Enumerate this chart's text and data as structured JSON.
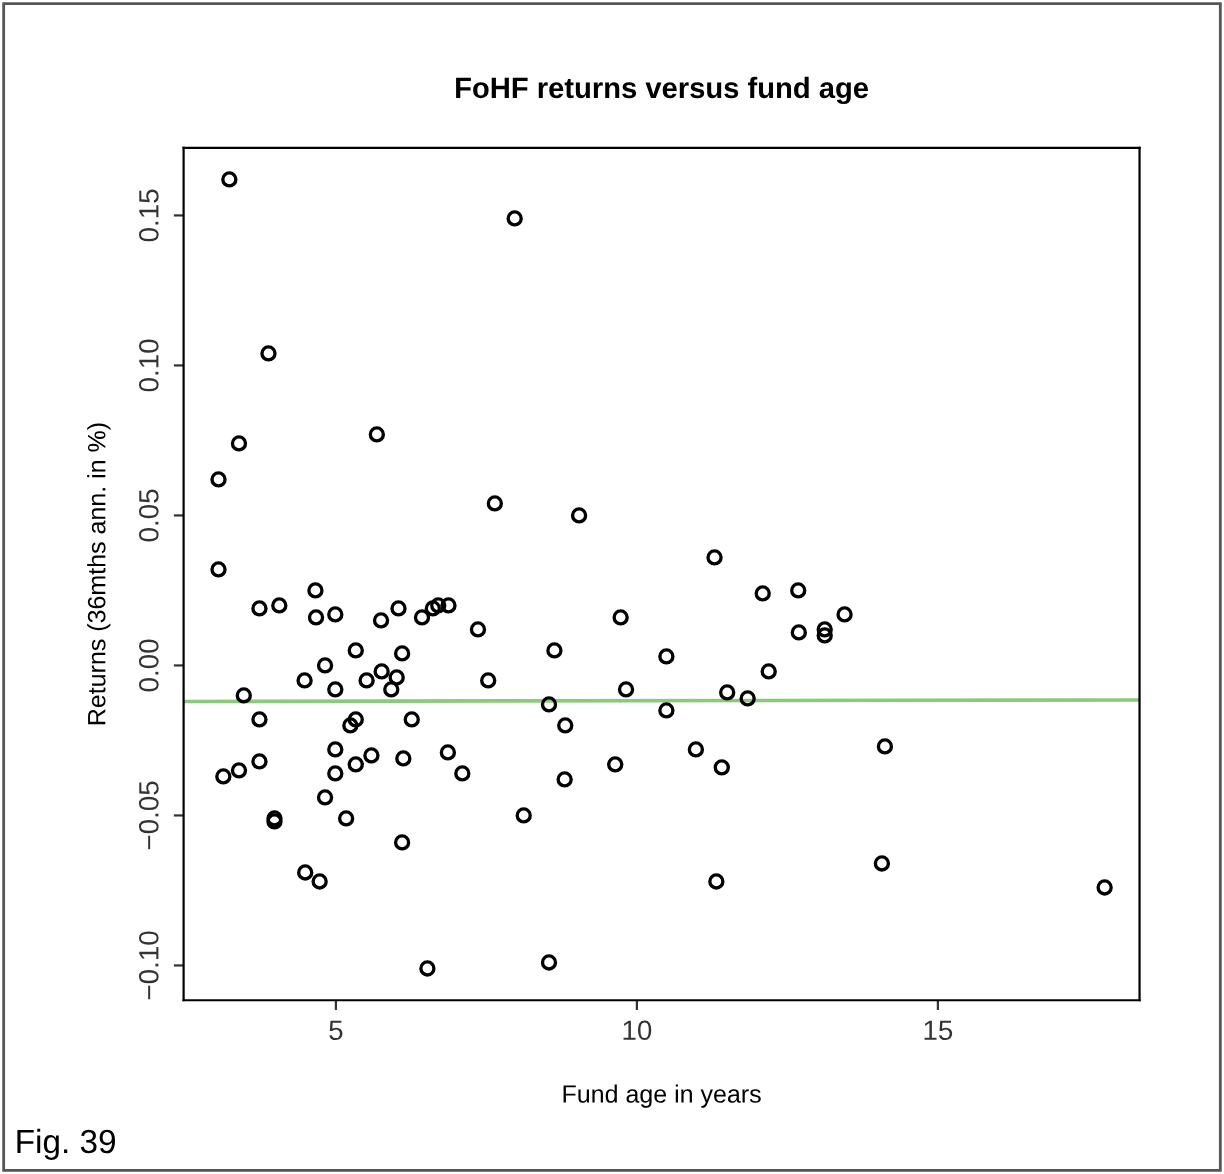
{
  "chart_data": {
    "type": "scatter",
    "title": "FoHF returns versus fund age",
    "xlabel": "Fund age in years",
    "ylabel": "Returns (36mths ann. in %)",
    "annotations": [
      "Fig. 39"
    ],
    "xlim": [
      2.47,
      18.35
    ],
    "ylim": [
      -0.1116,
      0.1725
    ],
    "xticks": [
      5,
      10,
      15
    ],
    "yticks": [
      {
        "value": -0.1,
        "label": "−0.10"
      },
      {
        "value": -0.05,
        "label": "−0.05"
      },
      {
        "value": 0,
        "label": "0.00"
      },
      {
        "value": 0.05,
        "label": "0.05"
      },
      {
        "value": 0.1,
        "label": "0.10"
      },
      {
        "value": 0.15,
        "label": "0.15"
      }
    ],
    "grid": false,
    "legend": false,
    "marker": "circle",
    "series": [
      {
        "color": "#000000",
        "x": [
          3.47,
          3.73,
          3.13,
          3.39,
          3.73,
          3.98,
          3.98,
          4.48,
          4.82,
          4.99,
          4.49,
          4.73,
          4.82,
          4.99,
          4.99,
          5.17,
          5.24,
          5.33,
          5.33,
          5.33,
          5.51,
          5.59,
          5.76,
          5.92,
          6.01,
          6.1,
          6.12,
          6.1,
          6.26,
          6.52,
          6.86,
          7.1,
          7.36,
          7.53,
          8.12,
          8.54,
          8.63,
          8.81,
          8.8,
          8.54,
          9.64,
          9.73,
          9.82,
          10.49,
          10.49,
          10.98,
          11.32,
          3.73,
          4.06,
          4.67,
          4.99,
          5.75,
          6.04,
          6.43,
          6.61,
          6.7,
          6.87,
          3.23,
          7.97,
          3.88,
          3.39,
          3.05,
          5.68,
          3.05,
          7.64,
          9.04,
          11.29,
          4.66,
          11.41,
          11.5,
          11.84,
          12.19,
          12.69,
          13.12,
          13.12,
          13.45,
          14.12,
          14.07,
          17.77,
          12.09,
          12.68
        ],
        "values": [
          -0.01,
          -0.018,
          -0.037,
          -0.035,
          -0.032,
          -0.051,
          -0.052,
          -0.005,
          0.0,
          -0.008,
          -0.069,
          -0.072,
          -0.044,
          -0.028,
          -0.036,
          -0.051,
          -0.02,
          -0.018,
          0.005,
          -0.033,
          -0.005,
          -0.03,
          -0.002,
          -0.008,
          -0.004,
          0.004,
          -0.031,
          -0.059,
          -0.018,
          -0.101,
          -0.029,
          -0.036,
          0.012,
          -0.005,
          -0.05,
          -0.013,
          0.005,
          -0.02,
          -0.038,
          -0.099,
          -0.033,
          0.016,
          -0.008,
          0.003,
          -0.015,
          -0.028,
          -0.072,
          0.019,
          0.02,
          0.016,
          0.017,
          0.015,
          0.019,
          0.016,
          0.019,
          0.02,
          0.02,
          0.162,
          0.149,
          0.104,
          0.074,
          0.062,
          0.077,
          0.032,
          0.054,
          0.05,
          0.036,
          0.025,
          -0.034,
          -0.009,
          -0.011,
          -0.002,
          0.011,
          0.012,
          0.01,
          0.017,
          -0.027,
          -0.066,
          -0.074,
          0.024,
          0.025
        ]
      },
      {
        "type": "line",
        "color": "#8cc97a",
        "marker": "none",
        "x": [
          2.47,
          18.35
        ],
        "values": [
          -0.012,
          -0.0115
        ]
      }
    ]
  }
}
